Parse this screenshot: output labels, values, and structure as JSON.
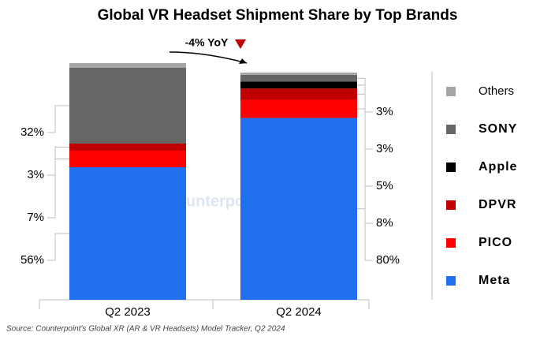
{
  "chart_data": {
    "type": "stacked_bar",
    "title": "Global VR Headset Shipment Share by Top Brands",
    "categories": [
      "Q2 2023",
      "Q2 2024"
    ],
    "annotation": {
      "value": -4,
      "label": "-4% YoY"
    },
    "series": [
      {
        "name": "Meta",
        "color": "#1f6fee",
        "values": [
          56,
          80
        ],
        "value_labels": [
          "56%",
          "80%"
        ]
      },
      {
        "name": "PICO",
        "color": "#ff0000",
        "values": [
          7,
          8
        ],
        "value_labels": [
          "7%",
          "8%"
        ]
      },
      {
        "name": "DPVR",
        "color": "#c00000",
        "values": [
          3,
          5
        ],
        "value_labels": [
          "3%",
          "5%"
        ]
      },
      {
        "name": "Apple",
        "color": "#000000",
        "values": [
          0,
          3
        ],
        "value_labels": [
          null,
          "3%"
        ]
      },
      {
        "name": "SONY",
        "color": "#666666",
        "values": [
          32,
          3
        ],
        "value_labels": [
          "32%",
          "3%"
        ]
      },
      {
        "name": "Others",
        "color": "#a6a6a6",
        "values": [
          2,
          1
        ],
        "value_labels": [
          null,
          null
        ]
      }
    ],
    "watermark": "Counterpoint",
    "source": "Source: Counterpoint's Global XR (AR & VR Headsets) Model Tracker, Q2 2024"
  }
}
